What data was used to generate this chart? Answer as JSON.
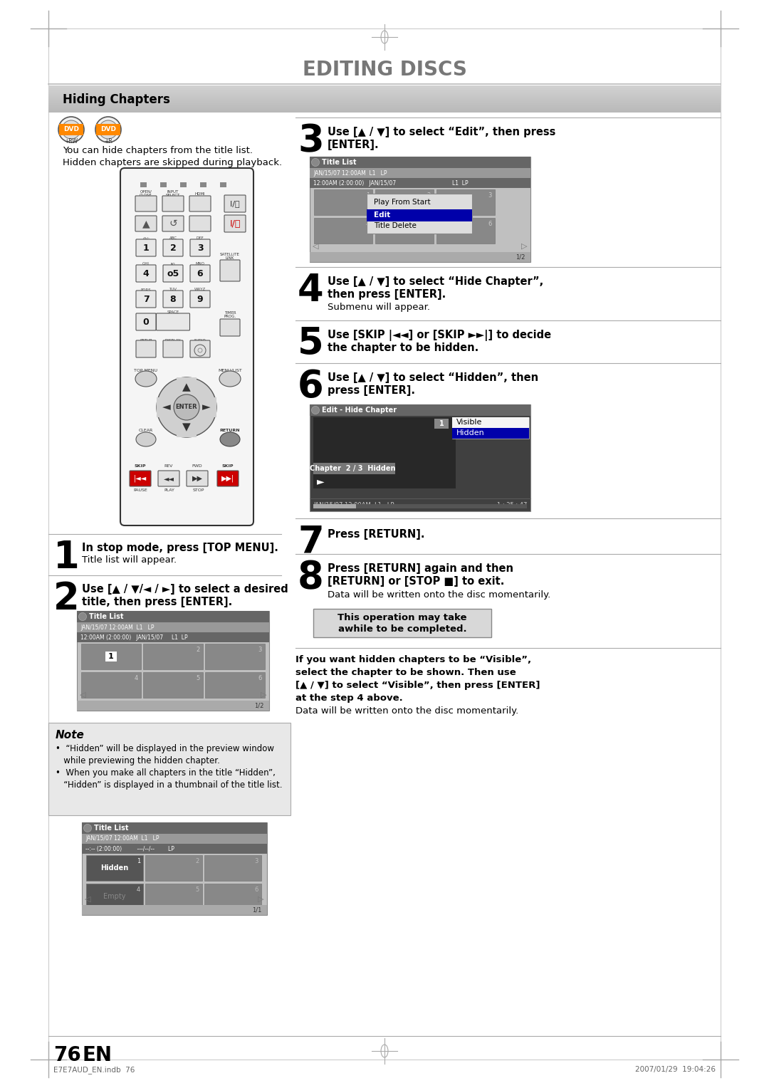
{
  "title": "EDITING DISCS",
  "section_title": "Hiding Chapters",
  "bg_color": "#ffffff",
  "page_number": "76",
  "page_label": "EN",
  "footer_left": "E7E7AUD_EN.indb  76",
  "footer_right": "2007/01/29  19:04:26",
  "intro_lines": [
    "You can hide chapters from the title list.",
    "Hidden chapters are skipped during playback."
  ],
  "step1_bold": "In stop mode, press [TOP MENU].",
  "step1_normal": "Title list will appear.",
  "step2_bold": "Use [▲ / ▼/◄ / ►] to select a desired",
  "step2_bold2": "title, then press [ENTER].",
  "step3_bold": "Use [▲ / ▼] to select “Edit”, then press",
  "step3_bold2": "[ENTER].",
  "step4_bold": "Use [▲ / ▼] to select “Hide Chapter”,",
  "step4_bold2": "then press [ENTER].",
  "step4_normal": "Submenu will appear.",
  "step5_bold": "Use [SKIP |◄◄] or [SKIP ►►|] to decide",
  "step5_bold2": "the chapter to be hidden.",
  "step6_bold": "Use [▲ / ▼] to select “Hidden”, then",
  "step6_bold2": "press [ENTER].",
  "step7_bold": "Press [RETURN].",
  "step8_bold": "Press [RETURN] again and then",
  "step8_bold2": "[RETURN] or [STOP ■] to exit.",
  "step8_normal": "Data will be written onto the disc momentarily.",
  "note_lines": [
    "•  “Hidden” will be displayed in the preview window",
    "   while previewing the hidden chapter.",
    "•  When you make all chapters in the title “Hidden”,",
    "   “Hidden” is displayed in a thumbnail of the title list."
  ],
  "tip_bold_lines": [
    "If you want hidden chapters to be “Visible”,",
    "select the chapter to be shown. Then use",
    "[▲ / ▼] to select “Visible”, then press [ENTER]",
    "at the step 4 above."
  ],
  "tip_normal": "Data will be written onto the disc momentarily.",
  "warning_line1": "This operation may take",
  "warning_line2": "awhile to be completed."
}
